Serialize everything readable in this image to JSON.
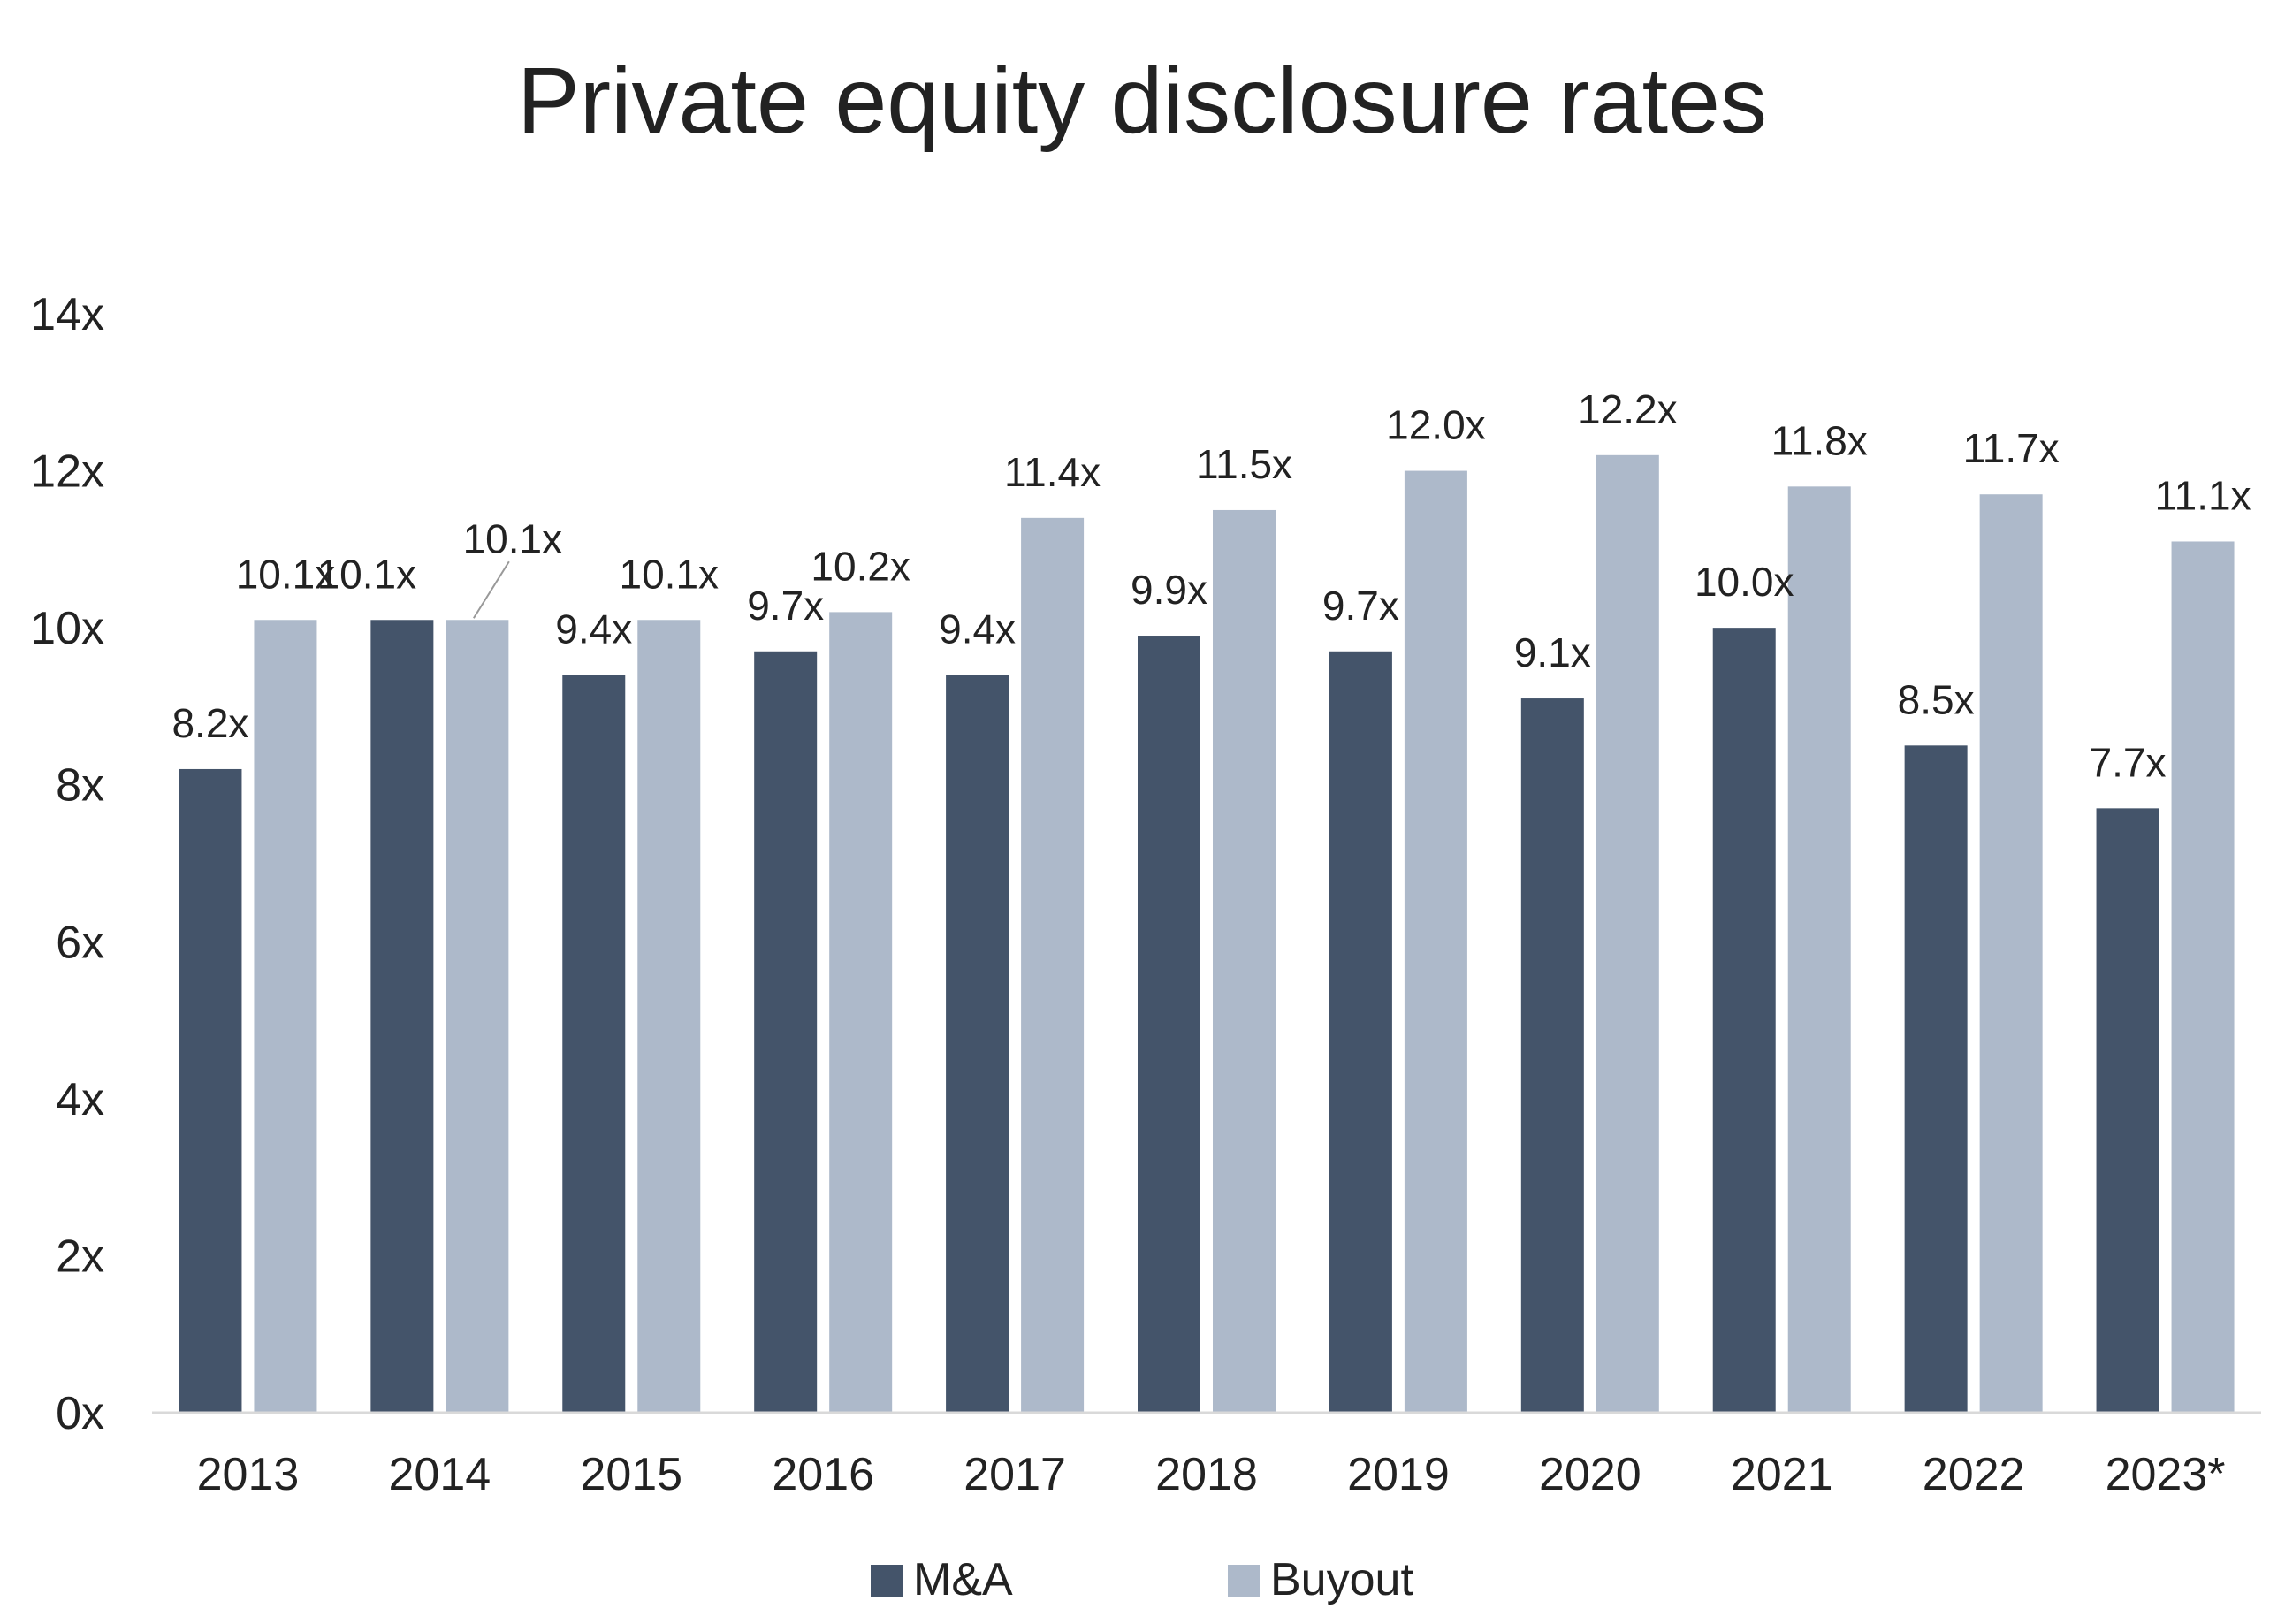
{
  "chart_data": {
    "type": "bar",
    "title": "Private equity disclosure rates",
    "xlabel": "",
    "ylabel": "",
    "categories": [
      "2013",
      "2014",
      "2015",
      "2016",
      "2017",
      "2018",
      "2019",
      "2020",
      "2021",
      "2022",
      "2023*"
    ],
    "series": [
      {
        "name": "M&A",
        "color": "#44546a",
        "values": [
          8.2,
          10.1,
          9.4,
          9.7,
          9.4,
          9.9,
          9.7,
          9.1,
          10.0,
          8.5,
          7.7
        ],
        "labels": [
          "8.2x",
          "10.1x",
          "9.4x",
          "9.7x",
          "9.4x",
          "9.9x",
          "9.7x",
          "9.1x",
          "10.0x",
          "8.5x",
          "7.7x"
        ]
      },
      {
        "name": "Buyout",
        "color": "#adb9ca",
        "values": [
          10.1,
          10.1,
          10.1,
          10.2,
          11.4,
          11.5,
          12.0,
          12.2,
          11.8,
          11.7,
          11.1
        ],
        "labels": [
          "10.1x",
          "10.1x",
          "10.1x",
          "10.2x",
          "11.4x",
          "11.5x",
          "12.0x",
          "12.2x",
          "11.8x",
          "11.7x",
          "11.1x"
        ]
      }
    ],
    "ylim": [
      0,
      14
    ],
    "yticks": [
      0,
      2,
      4,
      6,
      8,
      10,
      12,
      14
    ],
    "ytick_labels": [
      "0x",
      "2x",
      "4x",
      "6x",
      "8x",
      "10x",
      "12x",
      "14x"
    ],
    "grid": false,
    "legend": "bottom-center",
    "axis_color": "#d9d9d9"
  }
}
